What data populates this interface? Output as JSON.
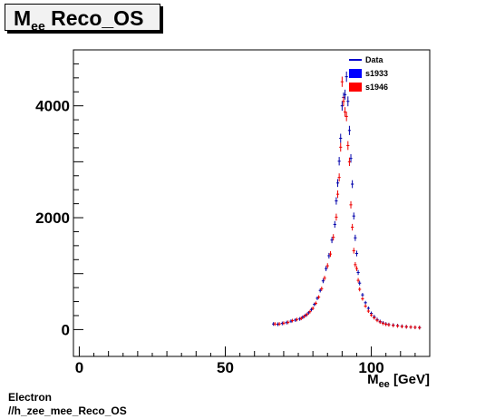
{
  "chart_data": {
    "type": "scatter",
    "title": "Mee Reco_OS",
    "title_main": "M",
    "title_sub": "ee",
    "title_rest": " Reco_OS",
    "xlabel_main": "M",
    "xlabel_sub": "ee",
    "xlabel_rest": " [GeV]",
    "xlim": [
      -2,
      120
    ],
    "ylim": [
      -480,
      5000
    ],
    "xticks": [
      0,
      50,
      100
    ],
    "yticks": [
      0,
      2000,
      4000
    ],
    "grid": false,
    "legend_position": "top-right",
    "legend": [
      {
        "label": "Data",
        "kind": "line",
        "color": "#0000cc"
      },
      {
        "label": "s1933",
        "kind": "box",
        "color": "#0000ff"
      },
      {
        "label": "s1946",
        "kind": "box",
        "color": "#ff0000"
      }
    ],
    "series": [
      {
        "name": "s1933",
        "color": "#0000aa",
        "x": [
          66.5,
          68,
          69.5,
          71,
          72.5,
          74,
          75.5,
          76.5,
          77.5,
          78.5,
          79.5,
          80.5,
          81.5,
          82.5,
          83.5,
          84.5,
          85.5,
          86.5,
          87.5,
          88,
          88.5,
          89,
          89.5,
          90,
          90.5,
          91,
          91.5,
          92,
          92.5,
          93,
          93.5,
          94,
          94.5,
          95,
          95.5,
          96,
          97,
          98,
          99,
          100,
          101,
          102,
          103,
          104,
          105,
          106,
          107.5,
          109,
          110.5,
          112,
          113.5,
          115,
          116.5
        ],
        "y": [
          100,
          95,
          110,
          125,
          150,
          170,
          190,
          220,
          255,
          300,
          360,
          450,
          560,
          700,
          870,
          1090,
          1320,
          1600,
          1880,
          2300,
          2620,
          3010,
          3420,
          4000,
          4150,
          4200,
          4520,
          4080,
          3560,
          3060,
          2600,
          2030,
          1640,
          1360,
          1020,
          830,
          620,
          480,
          380,
          290,
          230,
          180,
          145,
          120,
          100,
          90,
          80,
          70,
          60,
          50,
          45,
          40,
          35
        ]
      },
      {
        "name": "s1946",
        "color": "#ee0000",
        "x": [
          67,
          68.5,
          70,
          71.5,
          73,
          74.5,
          76,
          77,
          78,
          79,
          80,
          81,
          82,
          83,
          84,
          85,
          86,
          87,
          88,
          88.5,
          89,
          89.5,
          90,
          90.5,
          91,
          91.5,
          92,
          92.5,
          93,
          93.5,
          94,
          94.5,
          95,
          95.5,
          96,
          97,
          98,
          99,
          100,
          101,
          102,
          103,
          104,
          105,
          106,
          107.5,
          109,
          110.5,
          112,
          113.5,
          115,
          116.5
        ],
        "y": [
          100,
          100,
          115,
          130,
          160,
          180,
          200,
          235,
          270,
          320,
          380,
          470,
          580,
          730,
          920,
          1140,
          1350,
          1650,
          2010,
          2420,
          2720,
          3260,
          4430,
          4080,
          3890,
          3810,
          3290,
          3000,
          2230,
          1830,
          1410,
          1160,
          1090,
          880,
          720,
          550,
          420,
          330,
          260,
          210,
          165,
          135,
          110,
          95,
          85,
          75,
          65,
          55,
          50,
          45,
          40,
          35
        ]
      }
    ]
  },
  "footer": {
    "line1": "Electron",
    "line2": "//h_zee_mee_Reco_OS"
  }
}
